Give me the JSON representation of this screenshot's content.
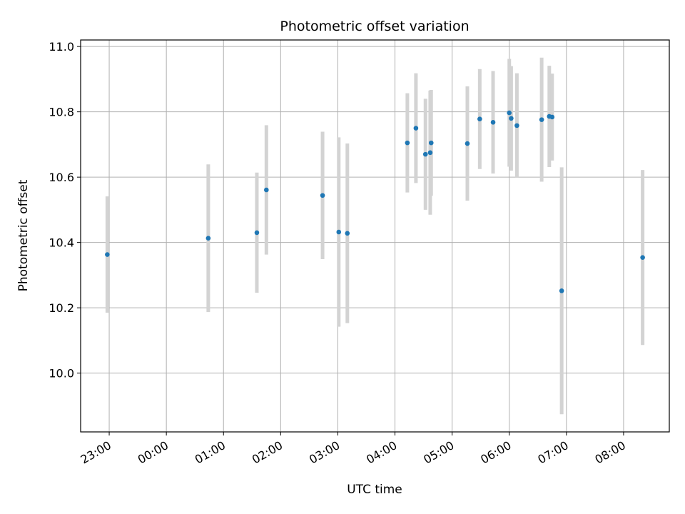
{
  "chart_data": {
    "type": "scatter",
    "title": "Photometric offset variation",
    "xlabel": "UTC time",
    "ylabel": "Photometric offset",
    "grid": true,
    "x_unit": "UTC time",
    "x_ticks": [
      "23:00",
      "00:00",
      "01:00",
      "02:00",
      "03:00",
      "04:00",
      "05:00",
      "06:00",
      "07:00",
      "08:00"
    ],
    "y_ticks": [
      "10.0",
      "10.2",
      "10.4",
      "10.6",
      "10.8",
      "11.0"
    ],
    "ylim": [
      9.82,
      11.02
    ],
    "xlim": [
      "22:30",
      "08:48"
    ],
    "point_color": "#1f77b4",
    "errorbar_color": "#d3d3d3",
    "points": [
      {
        "time": "22:58",
        "y": 10.363,
        "err": 0.178
      },
      {
        "time": "00:44",
        "y": 10.413,
        "err": 0.226
      },
      {
        "time": "01:35",
        "y": 10.43,
        "err": 0.184
      },
      {
        "time": "01:45",
        "y": 10.561,
        "err": 0.198
      },
      {
        "time": "02:44",
        "y": 10.544,
        "err": 0.195
      },
      {
        "time": "03:01",
        "y": 10.432,
        "err": 0.29
      },
      {
        "time": "03:10",
        "y": 10.428,
        "err": 0.275
      },
      {
        "time": "04:13",
        "y": 10.705,
        "err": 0.152
      },
      {
        "time": "04:22",
        "y": 10.75,
        "err": 0.168
      },
      {
        "time": "04:32",
        "y": 10.67,
        "err": 0.17
      },
      {
        "time": "04:37",
        "y": 10.675,
        "err": 0.19
      },
      {
        "time": "04:38",
        "y": 10.705,
        "err": 0.162
      },
      {
        "time": "05:16",
        "y": 10.703,
        "err": 0.175
      },
      {
        "time": "05:29",
        "y": 10.778,
        "err": 0.153
      },
      {
        "time": "05:43",
        "y": 10.768,
        "err": 0.157
      },
      {
        "time": "05:60",
        "y": 10.797,
        "err": 0.165
      },
      {
        "time": "06:02",
        "y": 10.78,
        "err": 0.16
      },
      {
        "time": "06:08",
        "y": 10.758,
        "err": 0.16
      },
      {
        "time": "06:34",
        "y": 10.776,
        "err": 0.19
      },
      {
        "time": "06:42",
        "y": 10.786,
        "err": 0.155
      },
      {
        "time": "06:45",
        "y": 10.784,
        "err": 0.133
      },
      {
        "time": "06:55",
        "y": 10.252,
        "err": 0.378
      },
      {
        "time": "08:20",
        "y": 10.354,
        "err": 0.268
      }
    ]
  }
}
